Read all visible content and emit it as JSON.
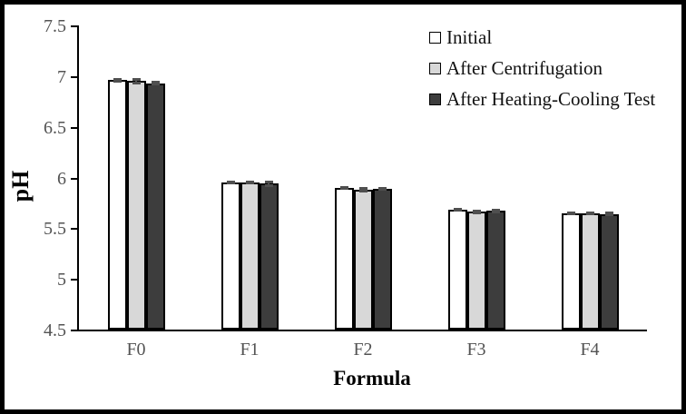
{
  "chart_data": {
    "type": "bar",
    "title": "",
    "xlabel": "Formula",
    "ylabel": "pH",
    "categories": [
      "F0",
      "F1",
      "F2",
      "F3",
      "F4"
    ],
    "series": [
      {
        "name": "Initial",
        "color": "#ffffff",
        "values": [
          6.96,
          5.95,
          5.9,
          5.68,
          5.65
        ],
        "errors": [
          0.02,
          0.02,
          0.015,
          0.02,
          0.015
        ]
      },
      {
        "name": "After Centrifugation",
        "color": "#d8d8d8",
        "values": [
          6.95,
          5.95,
          5.88,
          5.66,
          5.65
        ],
        "errors": [
          0.03,
          0.02,
          0.03,
          0.025,
          0.015
        ]
      },
      {
        "name": "After Heating-Cooling Test",
        "color": "#3d3d3d",
        "values": [
          6.93,
          5.94,
          5.89,
          5.67,
          5.64
        ],
        "errors": [
          0.02,
          0.03,
          0.02,
          0.025,
          0.02
        ]
      }
    ],
    "ylim": [
      4.5,
      7.5
    ],
    "ytick_step": 0.5,
    "grid": false,
    "legend_position": "top-right",
    "error_bar_color": "#4f4f4f",
    "axis_color": "#000000",
    "tick_label_color": "#535353"
  }
}
